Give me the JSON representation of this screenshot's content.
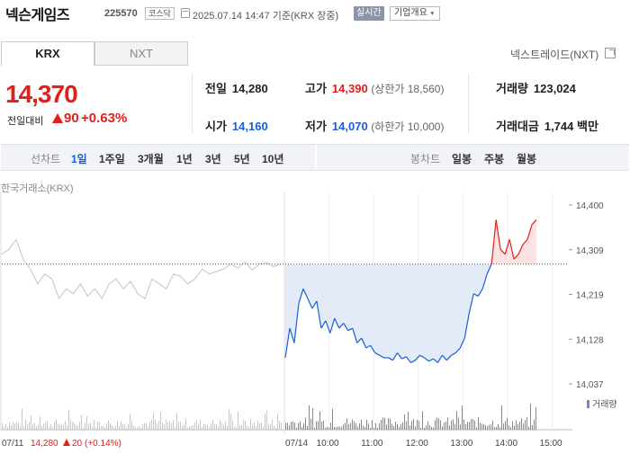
{
  "header": {
    "stock_name": "넥슨게임즈",
    "stock_code": "225570",
    "market": "코스닥",
    "timestamp": "2025.07.14 14:47 기준(KRX 장중)",
    "realtime_label": "실시간",
    "company_info_label": "기업개요"
  },
  "tabs": {
    "krx": "KRX",
    "nxt": "NXT",
    "nxt_link": "넥스트레이드(NXT)"
  },
  "price": {
    "current": "14,370",
    "change_label": "전일대비",
    "change_value": "90",
    "change_pct": "+0.63%"
  },
  "stats": {
    "prev_close": {
      "label": "전일",
      "value": "14,280"
    },
    "open": {
      "label": "시가",
      "value": "14,160"
    },
    "high": {
      "label": "고가",
      "value": "14,390",
      "note": "(상한가 18,560)"
    },
    "low": {
      "label": "저가",
      "value": "14,070",
      "note": "(하한가 10,000)"
    },
    "volume": {
      "label": "거래량",
      "value": "123,024"
    },
    "amount": {
      "label": "거래대금",
      "value": "1,744 백만"
    }
  },
  "toolbar": {
    "line_label": "선차트",
    "periods": [
      "1일",
      "1주일",
      "3개월",
      "1년",
      "3년",
      "5년",
      "10년"
    ],
    "active_period": "1일",
    "candle_label": "봉차트",
    "candles": [
      "일봉",
      "주봉",
      "월봉"
    ]
  },
  "chart": {
    "caption": "한국거래소(KRX)",
    "volume_legend": "거래량",
    "y_ticks": [
      "14,400",
      "14,309",
      "14,219",
      "14,128",
      "14,037"
    ],
    "x_ticks": [
      "07/14",
      "10:00",
      "11:00",
      "12:00",
      "13:00",
      "14:00",
      "15:00"
    ],
    "prev_day_info": {
      "date": "07/11",
      "price": "14,280",
      "change": "20",
      "change_pct": "(+0.14%)"
    },
    "colors": {
      "up": "#e0201b",
      "down": "#1a5fd8",
      "prev": "#c4c4c4",
      "fill_down": "#e3eaf8",
      "fill_up": "#fbe3e3",
      "volume": "#8f7bb6"
    }
  },
  "chart_data": {
    "type": "line",
    "title": "",
    "reference_price": 14280,
    "ylim": [
      14037,
      14400
    ],
    "prev_day_series": {
      "name": "07/11",
      "values": [
        14300,
        14310,
        14330,
        14290,
        14270,
        14240,
        14260,
        14250,
        14210,
        14230,
        14220,
        14240,
        14215,
        14230,
        14210,
        14240,
        14250,
        14230,
        14245,
        14220,
        14210,
        14250,
        14240,
        14230,
        14260,
        14255,
        14240,
        14250,
        14270,
        14260,
        14265,
        14270,
        14280,
        14272,
        14285,
        14268,
        14280,
        14283,
        14275,
        14280
      ]
    },
    "series": [
      {
        "values": [
          14090,
          14150,
          14120,
          14200,
          14230,
          14210,
          14190,
          14205,
          14150,
          14165,
          14140,
          14170,
          14150,
          14160,
          14145,
          14150,
          14120,
          14130,
          14110,
          14115,
          14100,
          14095,
          14090,
          14090,
          14085,
          14100,
          14088,
          14092,
          14080,
          14085,
          14095,
          14090,
          14083,
          14088,
          14080,
          14095,
          14085,
          14095,
          14100,
          14110,
          14130,
          14180,
          14220,
          14215,
          14230,
          14260,
          14280,
          14370,
          14310,
          14300,
          14330,
          14290,
          14300,
          14320,
          14330,
          14360,
          14370
        ]
      }
    ]
  }
}
